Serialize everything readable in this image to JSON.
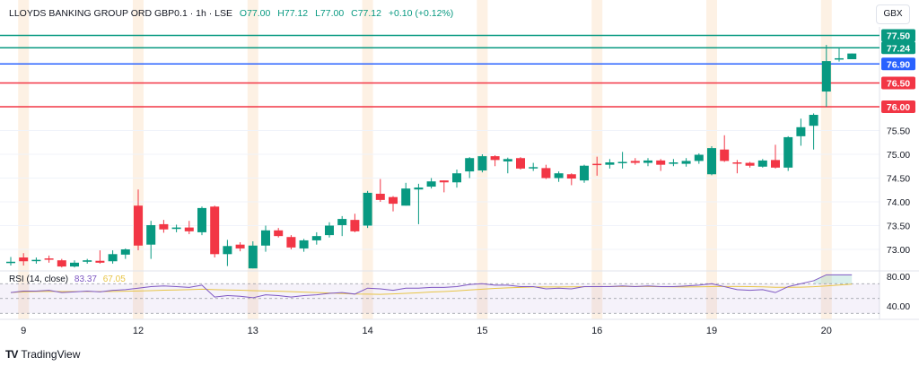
{
  "header": {
    "symbol": "LLOYDS BANKING GROUP ORD GBP0.1 · 1h · LSE",
    "open": "O77.00",
    "high": "H77.12",
    "low": "L77.00",
    "close": "C77.12",
    "change": "+0.10 (+0.12%)"
  },
  "currency": "GBX",
  "brand": "TradingView",
  "colors": {
    "up": "#089981",
    "down": "#f23645",
    "blue": "#2962ff",
    "rsi": "#7e57c2",
    "rsi_ma": "#e8c547",
    "session_band": "#fdeedd"
  },
  "chart_data": [
    {
      "type": "candlestick",
      "y_axis_ticks": [
        "75.50",
        "75.00",
        "74.50",
        "74.00",
        "73.50",
        "73.00"
      ],
      "ylim": [
        72.6,
        77.7
      ],
      "x_tick_labels": [
        "9",
        "12",
        "13",
        "14",
        "15",
        "16",
        "19",
        "20"
      ],
      "horizontal_levels": [
        {
          "price": 77.5,
          "label": "77.50",
          "color": "#089981"
        },
        {
          "price": 77.24,
          "label": "77.24",
          "color": "#089981"
        },
        {
          "price": 76.9,
          "label": "76.90",
          "color": "#2962ff"
        },
        {
          "price": 76.5,
          "label": "76.50",
          "color": "#f23645"
        },
        {
          "price": 76.0,
          "label": "76.00",
          "color": "#f23645"
        }
      ],
      "ohlc": [
        [
          72.72,
          72.74,
          72.84,
          72.66
        ],
        [
          72.83,
          72.75,
          72.92,
          72.66
        ],
        [
          72.76,
          72.78,
          72.83,
          72.7
        ],
        [
          72.81,
          72.79,
          72.87,
          72.72
        ],
        [
          72.77,
          72.64,
          72.8,
          72.62
        ],
        [
          72.64,
          72.72,
          72.77,
          72.62
        ],
        [
          72.74,
          72.77,
          72.8,
          72.7
        ],
        [
          72.76,
          72.72,
          72.98,
          72.7
        ],
        [
          72.75,
          72.9,
          72.98,
          72.7
        ],
        [
          72.89,
          73.0,
          73.02,
          72.8
        ],
        [
          73.92,
          73.08,
          74.26,
          72.98
        ],
        [
          73.1,
          73.51,
          73.6,
          72.8
        ],
        [
          73.53,
          73.42,
          73.62,
          73.35
        ],
        [
          73.43,
          73.46,
          73.52,
          73.36
        ],
        [
          73.46,
          73.38,
          73.6,
          73.32
        ],
        [
          73.36,
          73.87,
          73.9,
          73.3
        ],
        [
          73.9,
          72.9,
          73.92,
          72.83
        ],
        [
          72.9,
          73.07,
          73.2,
          72.65
        ],
        [
          73.1,
          73.02,
          73.15,
          72.96
        ],
        [
          72.6,
          73.08,
          73.17,
          72.6
        ],
        [
          73.08,
          73.4,
          73.5,
          72.95
        ],
        [
          73.4,
          73.28,
          73.45,
          73.25
        ],
        [
          73.26,
          73.04,
          73.3,
          73.0
        ],
        [
          73.02,
          73.19,
          73.22,
          72.95
        ],
        [
          73.19,
          73.28,
          73.36,
          73.1
        ],
        [
          73.3,
          73.5,
          73.57,
          73.25
        ],
        [
          73.51,
          73.64,
          73.7,
          73.28
        ],
        [
          73.62,
          73.38,
          73.75,
          73.36
        ],
        [
          73.5,
          74.19,
          74.23,
          73.45
        ],
        [
          74.17,
          74.04,
          74.48,
          74.0
        ],
        [
          74.1,
          73.96,
          74.12,
          73.8
        ],
        [
          73.92,
          74.28,
          74.4,
          73.92
        ],
        [
          74.26,
          74.3,
          74.38,
          73.53
        ],
        [
          74.32,
          74.43,
          74.5,
          74.28
        ],
        [
          74.45,
          74.41,
          74.45,
          74.2
        ],
        [
          74.41,
          74.6,
          74.68,
          74.3
        ],
        [
          74.64,
          74.92,
          74.94,
          74.5
        ],
        [
          74.66,
          74.96,
          75.0,
          74.62
        ],
        [
          74.96,
          74.88,
          74.98,
          74.75
        ],
        [
          74.85,
          74.9,
          74.93,
          74.6
        ],
        [
          74.92,
          74.7,
          74.94,
          74.68
        ],
        [
          74.72,
          74.73,
          74.82,
          74.65
        ],
        [
          74.71,
          74.5,
          74.78,
          74.48
        ],
        [
          74.5,
          74.6,
          74.64,
          74.42
        ],
        [
          74.58,
          74.49,
          74.6,
          74.35
        ],
        [
          74.45,
          74.76,
          74.78,
          74.4
        ],
        [
          74.8,
          74.79,
          74.95,
          74.55
        ],
        [
          74.78,
          74.83,
          74.9,
          74.7
        ],
        [
          74.83,
          74.84,
          75.05,
          74.7
        ],
        [
          74.86,
          74.82,
          74.92,
          74.78
        ],
        [
          74.82,
          74.87,
          74.92,
          74.75
        ],
        [
          74.87,
          74.78,
          74.9,
          74.65
        ],
        [
          74.8,
          74.83,
          74.9,
          74.75
        ],
        [
          74.8,
          74.86,
          74.92,
          74.74
        ],
        [
          74.86,
          74.99,
          75.02,
          74.8
        ],
        [
          74.58,
          75.13,
          75.17,
          74.56
        ],
        [
          75.1,
          74.86,
          75.4,
          74.84
        ],
        [
          74.83,
          74.82,
          74.88,
          74.6
        ],
        [
          74.82,
          74.76,
          74.84,
          74.72
        ],
        [
          74.74,
          74.87,
          74.9,
          74.72
        ],
        [
          74.88,
          74.72,
          75.2,
          74.7
        ],
        [
          74.72,
          75.36,
          75.38,
          74.65
        ],
        [
          75.38,
          75.57,
          75.75,
          75.18
        ],
        [
          75.6,
          75.83,
          75.86,
          75.1
        ],
        [
          76.32,
          76.96,
          77.3,
          76.0
        ],
        [
          77.0,
          77.02,
          77.25,
          76.95
        ],
        [
          77.0,
          77.12,
          77.12,
          77.0
        ]
      ],
      "day_start_index": [
        1,
        10,
        19,
        28,
        37,
        46,
        55,
        64
      ]
    },
    {
      "type": "line",
      "title": "RSI (14, close)",
      "value": "83.37",
      "ma_value": "67.05",
      "y_axis_ticks": [
        "80.00",
        "40.00"
      ],
      "bands": [
        70,
        50,
        30
      ],
      "rsi": [
        58,
        60,
        60,
        61,
        58,
        59,
        60,
        59,
        61,
        62,
        64,
        66,
        67,
        66,
        65,
        68,
        52,
        54,
        53,
        51,
        55,
        54,
        52,
        54,
        55,
        57,
        58,
        56,
        64,
        63,
        61,
        64,
        64,
        65,
        65,
        66,
        69,
        70,
        68,
        68,
        66,
        66,
        63,
        64,
        63,
        66,
        66,
        66,
        67,
        66,
        67,
        66,
        66,
        67,
        68,
        70,
        66,
        62,
        61,
        62,
        58,
        66,
        70,
        74,
        82,
        82,
        83.37
      ]
    }
  ]
}
